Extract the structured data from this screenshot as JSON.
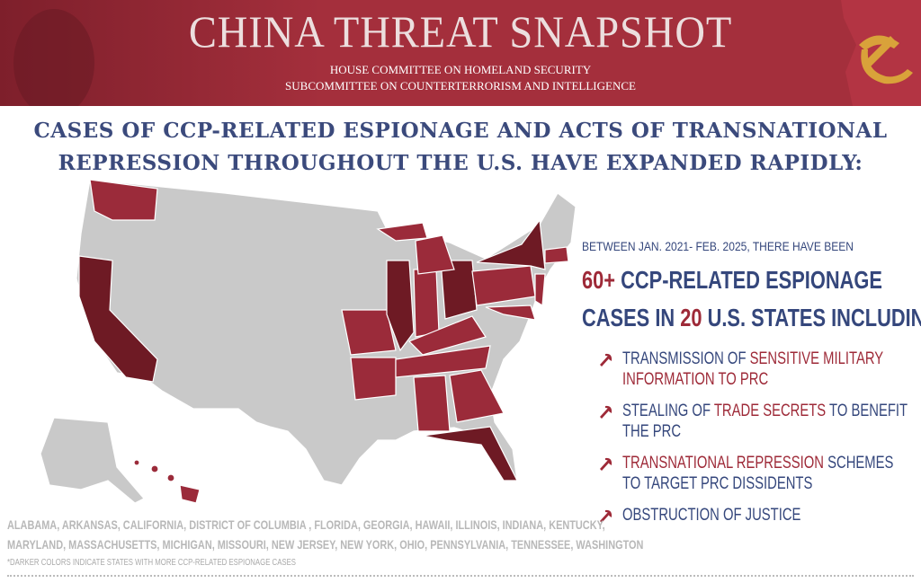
{
  "header": {
    "title": "CHINA THREAT SNAPSHOT",
    "subtitles": [
      "HOUSE COMMITTEE ON HOMELAND SECURITY",
      "SUBCOMMITTEE ON COUNTERTERRORISM AND INTELLIGENCE"
    ]
  },
  "headline": [
    "CASES OF CCP-RELATED ESPIONAGE AND ACTS OF TRANSNATIONAL",
    "REPRESSION THROUGHOUT THE U.S. HAVE EXPANDED RAPIDLY:"
  ],
  "summary": {
    "period": "BETWEEN JAN. 2021- FEB. 2025, THERE HAVE BEEN",
    "count": "60+",
    "line1": " CCP-RELATED ESPIONAGE",
    "line2_start": "CASES IN ",
    "state_count": "20",
    "line2_end": " U.S. STATES INCLUDING:"
  },
  "bullets": [
    {
      "lines": [
        [
          {
            "text": "TRANSMISSION OF ",
            "emphasis": false
          },
          {
            "text": "SENSITIVE MILITARY",
            "emphasis": true
          }
        ],
        [
          {
            "text": "INFORMATION TO PRC",
            "emphasis": true
          }
        ]
      ]
    },
    {
      "lines": [
        [
          {
            "text": "STEALING OF ",
            "emphasis": false
          },
          {
            "text": "TRADE SECRETS",
            "emphasis": true
          },
          {
            "text": " TO BENEFIT",
            "emphasis": false
          }
        ],
        [
          {
            "text": "THE PRC",
            "emphasis": false
          }
        ]
      ]
    },
    {
      "lines": [
        [
          {
            "text": "TRANSNATIONAL REPRESSION",
            "emphasis": true
          },
          {
            "text": " SCHEMES",
            "emphasis": false
          }
        ],
        [
          {
            "text": "TO TARGET PRC DISSIDENTS",
            "emphasis": false
          }
        ]
      ]
    },
    {
      "lines": [
        [
          {
            "text": "OBSTRUCTION OF JUSTICE",
            "emphasis": false
          }
        ]
      ]
    }
  ],
  "footer": {
    "states": [
      "ALABAMA, ARKANSAS, CALIFORNIA, DISTRICT OF COLUMBIA , FLORIDA, GEORGIA, HAWAII, ILLINOIS, INDIANA, KENTUCKY,",
      "MARYLAND, MASSACHUSETTS, MICHIGAN, MISSOURI, NEW JERSEY, NEW YORK, OHIO, PENNSYLVANIA, TENNESSEE, WASHINGTON"
    ],
    "note": "*DARKER COLORS INDICATE STATES WITH MORE CCP-RELATED ESPIONAGE CASES"
  }
}
